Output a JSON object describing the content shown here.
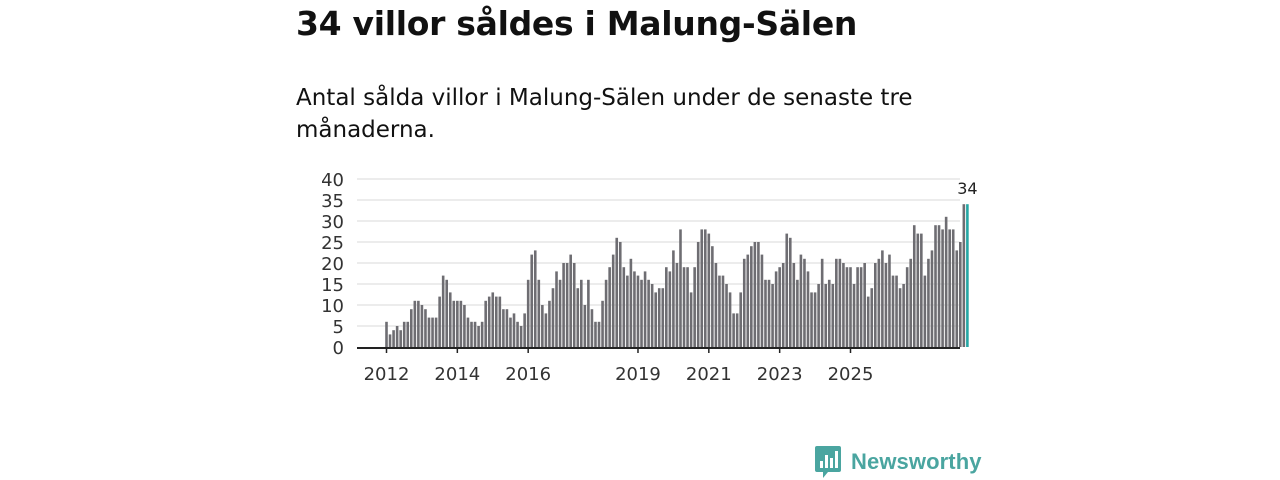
{
  "title": "34 villor såldes i Malung-Sälen",
  "subtitle": "Antal sålda villor i Malung-Sälen under de senaste tre månaderna.",
  "brand": {
    "name": "Newsworthy",
    "icon": "bar-chart-logo-icon",
    "color": "#4aa5a0"
  },
  "colors": {
    "bar": "#6e6d72",
    "highlight": "#26a7a4",
    "grid": "#d8d8d8",
    "axis": "#222222"
  },
  "chart_data": {
    "type": "bar",
    "title": "34 villor såldes i Malung-Sälen",
    "xlabel": "",
    "ylabel": "",
    "ylim": [
      0,
      40
    ],
    "yticks": [
      0,
      5,
      10,
      15,
      20,
      25,
      30,
      35,
      40
    ],
    "grid": true,
    "start": "2012-01",
    "xticks": [
      {
        "label": "2012",
        "index": 0
      },
      {
        "label": "2014",
        "index": 20
      },
      {
        "label": "2016",
        "index": 40
      },
      {
        "label": "2019",
        "index": 71
      },
      {
        "label": "2021",
        "index": 91
      },
      {
        "label": "2023",
        "index": 111
      },
      {
        "label": "2025",
        "index": 131
      }
    ],
    "values": [
      6,
      3,
      4,
      5,
      4,
      6,
      6,
      9,
      11,
      11,
      10,
      9,
      7,
      7,
      7,
      12,
      17,
      16,
      13,
      11,
      11,
      11,
      10,
      7,
      6,
      6,
      5,
      6,
      11,
      12,
      13,
      12,
      12,
      9,
      9,
      7,
      8,
      6,
      5,
      8,
      16,
      22,
      23,
      16,
      10,
      8,
      11,
      14,
      18,
      16,
      20,
      20,
      22,
      20,
      14,
      16,
      10,
      16,
      9,
      6,
      6,
      11,
      16,
      19,
      22,
      26,
      25,
      19,
      17,
      21,
      18,
      17,
      16,
      18,
      16,
      15,
      13,
      14,
      14,
      19,
      18,
      23,
      20,
      28,
      19,
      19,
      13,
      19,
      25,
      28,
      28,
      27,
      24,
      20,
      17,
      17,
      15,
      13,
      8,
      8,
      13,
      21,
      22,
      24,
      25,
      25,
      22,
      16,
      16,
      15,
      18,
      19,
      20,
      27,
      26,
      20,
      16,
      22,
      21,
      18,
      13,
      13,
      15,
      21,
      15,
      16,
      15,
      21,
      21,
      20,
      19,
      19,
      15,
      19,
      19,
      20,
      12,
      14,
      20,
      21,
      23,
      20,
      22,
      17,
      17,
      14,
      15,
      19,
      21,
      29,
      27,
      27,
      17,
      21,
      23,
      29,
      29,
      28,
      31,
      28,
      28,
      23,
      25,
      34,
      34
    ],
    "highlight_index": 164,
    "highlight_label": "34"
  }
}
